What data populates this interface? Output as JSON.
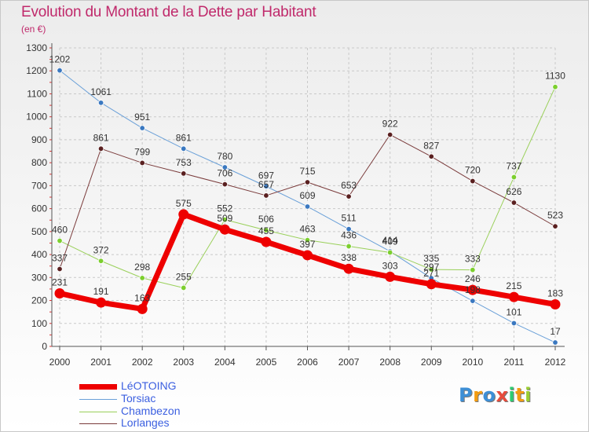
{
  "chart_data": {
    "type": "line",
    "title": "Evolution du Montant de la Dette par Habitant",
    "ylabel": "(en €)",
    "xlabel": "",
    "categories": [
      "2000",
      "2001",
      "2002",
      "2003",
      "2004",
      "2005",
      "2006",
      "2007",
      "2008",
      "2009",
      "2010",
      "2011",
      "2012"
    ],
    "ylim": [
      0,
      1300
    ],
    "yticks": [
      0,
      100,
      200,
      300,
      400,
      500,
      600,
      700,
      800,
      900,
      1000,
      1100,
      1200,
      1300
    ],
    "grid": "dashed horizontal and vertical",
    "legend_position": "bottom-left",
    "series": [
      {
        "name": "Torsiac",
        "color": "#6aa0d8",
        "marker": "#3a78c0",
        "width": 1,
        "values": [
          1202,
          1061,
          951,
          861,
          780,
          697,
          609,
          511,
          414,
          297,
          198,
          101,
          17
        ]
      },
      {
        "name": "Chambezon",
        "color": "#9ad05a",
        "marker": "#7ccf2e",
        "width": 1,
        "values": [
          460,
          372,
          298,
          255,
          552,
          506,
          463,
          436,
          409,
          335,
          333,
          737,
          1130
        ]
      },
      {
        "name": "Lorlanges",
        "color": "#7a3b3b",
        "marker": "#5a2020",
        "width": 1,
        "values": [
          337,
          861,
          799,
          753,
          706,
          657,
          715,
          653,
          922,
          827,
          720,
          626,
          523
        ]
      },
      {
        "name": "LéOTOING",
        "color": "#ee0000",
        "marker": "#ee0000",
        "width": 7,
        "values": [
          231,
          191,
          163,
          575,
          509,
          455,
          397,
          338,
          303,
          271,
          246,
          215,
          183
        ]
      }
    ]
  },
  "legend": [
    {
      "name": "LéOTOING",
      "color": "#ee0000",
      "thickness": 6
    },
    {
      "name": "Torsiac",
      "color": "#6aa0d8",
      "thickness": 1
    },
    {
      "name": "Chambezon",
      "color": "#9ad05a",
      "thickness": 1
    },
    {
      "name": "Lorlanges",
      "color": "#7a3b3b",
      "thickness": 1
    }
  ],
  "brand": {
    "letters": [
      "P",
      "r",
      "o",
      "x",
      "i",
      "t",
      "i"
    ],
    "colors": [
      "#3d8fd6",
      "#f39c12",
      "#3d8fd6",
      "#e74c3c",
      "#2ecc71",
      "#f39c12",
      "#9acd32"
    ]
  }
}
